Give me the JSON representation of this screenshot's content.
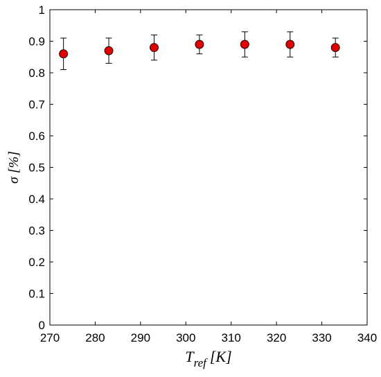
{
  "chart_data": {
    "type": "scatter",
    "title": "",
    "xlabel": {
      "main": "T",
      "subscript": "ref",
      "unit": "[K]"
    },
    "ylabel": {
      "main": "σ",
      "unit": "[%]"
    },
    "xlim": [
      270,
      340
    ],
    "ylim": [
      0,
      1
    ],
    "xticks": [
      270,
      280,
      290,
      300,
      310,
      320,
      330,
      340
    ],
    "xtick_labels": [
      "270",
      "280",
      "290",
      "300",
      "310",
      "320",
      "330",
      "340"
    ],
    "yticks": [
      0,
      0.1,
      0.2,
      0.3,
      0.4,
      0.5,
      0.6,
      0.7,
      0.8,
      0.9,
      1
    ],
    "ytick_labels": [
      "0",
      "0.1",
      "0.2",
      "0.3",
      "0.4",
      "0.5",
      "0.6",
      "0.7",
      "0.8",
      "0.9",
      "1"
    ],
    "grid": false,
    "legend": "none",
    "series": [
      {
        "marker_color": "#e00000",
        "marker_edge_color": "#000000",
        "errorbar_color": "#000000",
        "points": [
          {
            "x": 273,
            "y": 0.86,
            "ylow": 0.81,
            "yhigh": 0.91
          },
          {
            "x": 283,
            "y": 0.87,
            "ylow": 0.83,
            "yhigh": 0.91
          },
          {
            "x": 293,
            "y": 0.88,
            "ylow": 0.84,
            "yhigh": 0.92
          },
          {
            "x": 303,
            "y": 0.89,
            "ylow": 0.86,
            "yhigh": 0.92
          },
          {
            "x": 313,
            "y": 0.89,
            "ylow": 0.85,
            "yhigh": 0.93
          },
          {
            "x": 323,
            "y": 0.89,
            "ylow": 0.85,
            "yhigh": 0.93
          },
          {
            "x": 333,
            "y": 0.88,
            "ylow": 0.85,
            "yhigh": 0.91
          }
        ]
      }
    ]
  }
}
